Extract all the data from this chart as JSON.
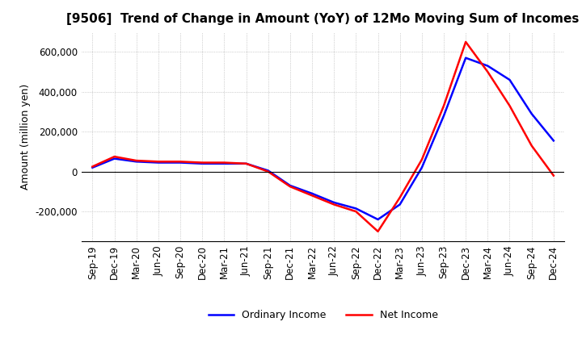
{
  "title": "[9506]  Trend of Change in Amount (YoY) of 12Mo Moving Sum of Incomes",
  "ylabel": "Amount (million yen)",
  "title_fontsize": 11,
  "label_fontsize": 9,
  "tick_fontsize": 8.5,
  "background_color": "#ffffff",
  "grid_color": "#aaaaaa",
  "ordinary_income_color": "#0000ff",
  "net_income_color": "#ff0000",
  "dates": [
    "Sep-19",
    "Dec-19",
    "Mar-20",
    "Jun-20",
    "Sep-20",
    "Dec-20",
    "Mar-21",
    "Jun-21",
    "Sep-21",
    "Dec-21",
    "Mar-22",
    "Jun-22",
    "Sep-22",
    "Dec-22",
    "Mar-23",
    "Jun-23",
    "Sep-23",
    "Dec-23",
    "Mar-24",
    "Jun-24",
    "Sep-24",
    "Dec-24"
  ],
  "ordinary_income": [
    20000,
    65000,
    50000,
    45000,
    45000,
    40000,
    40000,
    40000,
    5000,
    -70000,
    -110000,
    -155000,
    -185000,
    -240000,
    -165000,
    20000,
    280000,
    570000,
    530000,
    460000,
    290000,
    155000
  ],
  "net_income": [
    25000,
    75000,
    55000,
    50000,
    50000,
    45000,
    45000,
    40000,
    0,
    -75000,
    -120000,
    -165000,
    -200000,
    -300000,
    -130000,
    60000,
    330000,
    650000,
    500000,
    330000,
    130000,
    -20000
  ],
  "ylim": [
    -350000,
    700000
  ],
  "yticks": [
    -200000,
    0,
    200000,
    400000,
    600000
  ]
}
